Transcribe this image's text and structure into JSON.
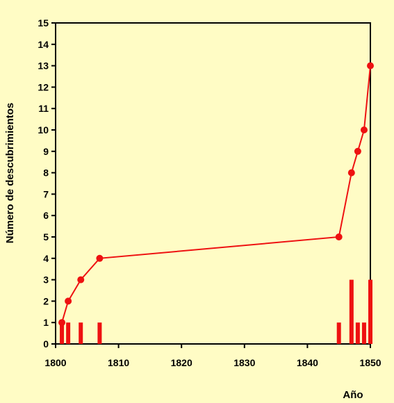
{
  "chart_data": {
    "type": "bar+line",
    "xlabel": "Año",
    "ylabel": "Número de descubrimientos",
    "xlim": [
      1800,
      1850
    ],
    "ylim": [
      0,
      15
    ],
    "x_ticks": [
      1800,
      1810,
      1820,
      1830,
      1840,
      1850
    ],
    "y_ticks": [
      0,
      1,
      2,
      3,
      4,
      5,
      6,
      7,
      8,
      9,
      10,
      11,
      12,
      13,
      14,
      15
    ],
    "bars": {
      "x": [
        1801,
        1802,
        1804,
        1807,
        1845,
        1847,
        1848,
        1849,
        1850
      ],
      "values": [
        1,
        1,
        1,
        1,
        1,
        3,
        1,
        1,
        3
      ]
    },
    "cumulative": {
      "x": [
        1801,
        1802,
        1804,
        1807,
        1845,
        1847,
        1848,
        1849,
        1850
      ],
      "values": [
        1,
        2,
        3,
        4,
        5,
        8,
        9,
        10,
        13
      ]
    },
    "grid": false,
    "legend": "none"
  },
  "colors": {
    "background": "#fffcc5",
    "series": "#ee1111",
    "axis": "#000000"
  }
}
